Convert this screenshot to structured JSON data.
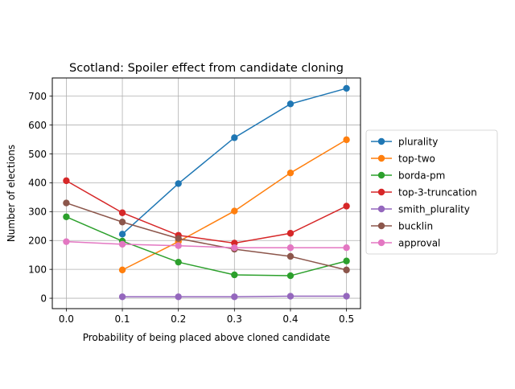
{
  "chart_data": {
    "type": "line",
    "title": "Scotland: Spoiler effect from candidate cloning",
    "xlabel": "Probability of being placed above cloned candidate",
    "ylabel": "Number of elections",
    "xlim": [
      -0.025,
      0.525
    ],
    "ylim": [
      -36,
      763
    ],
    "xticks": [
      0.0,
      0.1,
      0.2,
      0.3,
      0.4,
      0.5
    ],
    "xtick_labels": [
      "0.0",
      "0.1",
      "0.2",
      "0.3",
      "0.4",
      "0.5"
    ],
    "yticks": [
      0,
      100,
      200,
      300,
      400,
      500,
      600,
      700
    ],
    "ytick_labels": [
      "0",
      "100",
      "200",
      "300",
      "400",
      "500",
      "600",
      "700"
    ],
    "grid": true,
    "legend_position": "center-right-outside",
    "series": [
      {
        "name": "plurality",
        "color": "#1f77b4",
        "x": [
          0.1,
          0.2,
          0.3,
          0.4,
          0.5
        ],
        "values": [
          222,
          397,
          556,
          673,
          727
        ]
      },
      {
        "name": "top-two",
        "color": "#ff7f0e",
        "x": [
          0.1,
          0.2,
          0.3,
          0.4,
          0.5
        ],
        "values": [
          98,
          196,
          302,
          434,
          549
        ]
      },
      {
        "name": "borda-pm",
        "color": "#2ca02c",
        "x": [
          0.0,
          0.1,
          0.2,
          0.3,
          0.4,
          0.5
        ],
        "values": [
          282,
          198,
          125,
          81,
          78,
          129
        ]
      },
      {
        "name": "top-3-truncation",
        "color": "#d62728",
        "x": [
          0.0,
          0.1,
          0.2,
          0.3,
          0.4,
          0.5
        ],
        "values": [
          407,
          296,
          218,
          191,
          225,
          319
        ]
      },
      {
        "name": "smith_plurality",
        "color": "#9467bd",
        "x": [
          0.1,
          0.2,
          0.3,
          0.4,
          0.5
        ],
        "values": [
          5,
          5,
          5,
          7,
          7
        ]
      },
      {
        "name": "bucklin",
        "color": "#8c564b",
        "x": [
          0.0,
          0.1,
          0.2,
          0.3,
          0.4,
          0.5
        ],
        "values": [
          330,
          264,
          207,
          170,
          145,
          98
        ]
      },
      {
        "name": "approval",
        "color": "#e377c2",
        "x": [
          0.0,
          0.1,
          0.2,
          0.3,
          0.4,
          0.5
        ],
        "values": [
          196,
          187,
          182,
          175,
          175,
          175
        ]
      }
    ]
  }
}
